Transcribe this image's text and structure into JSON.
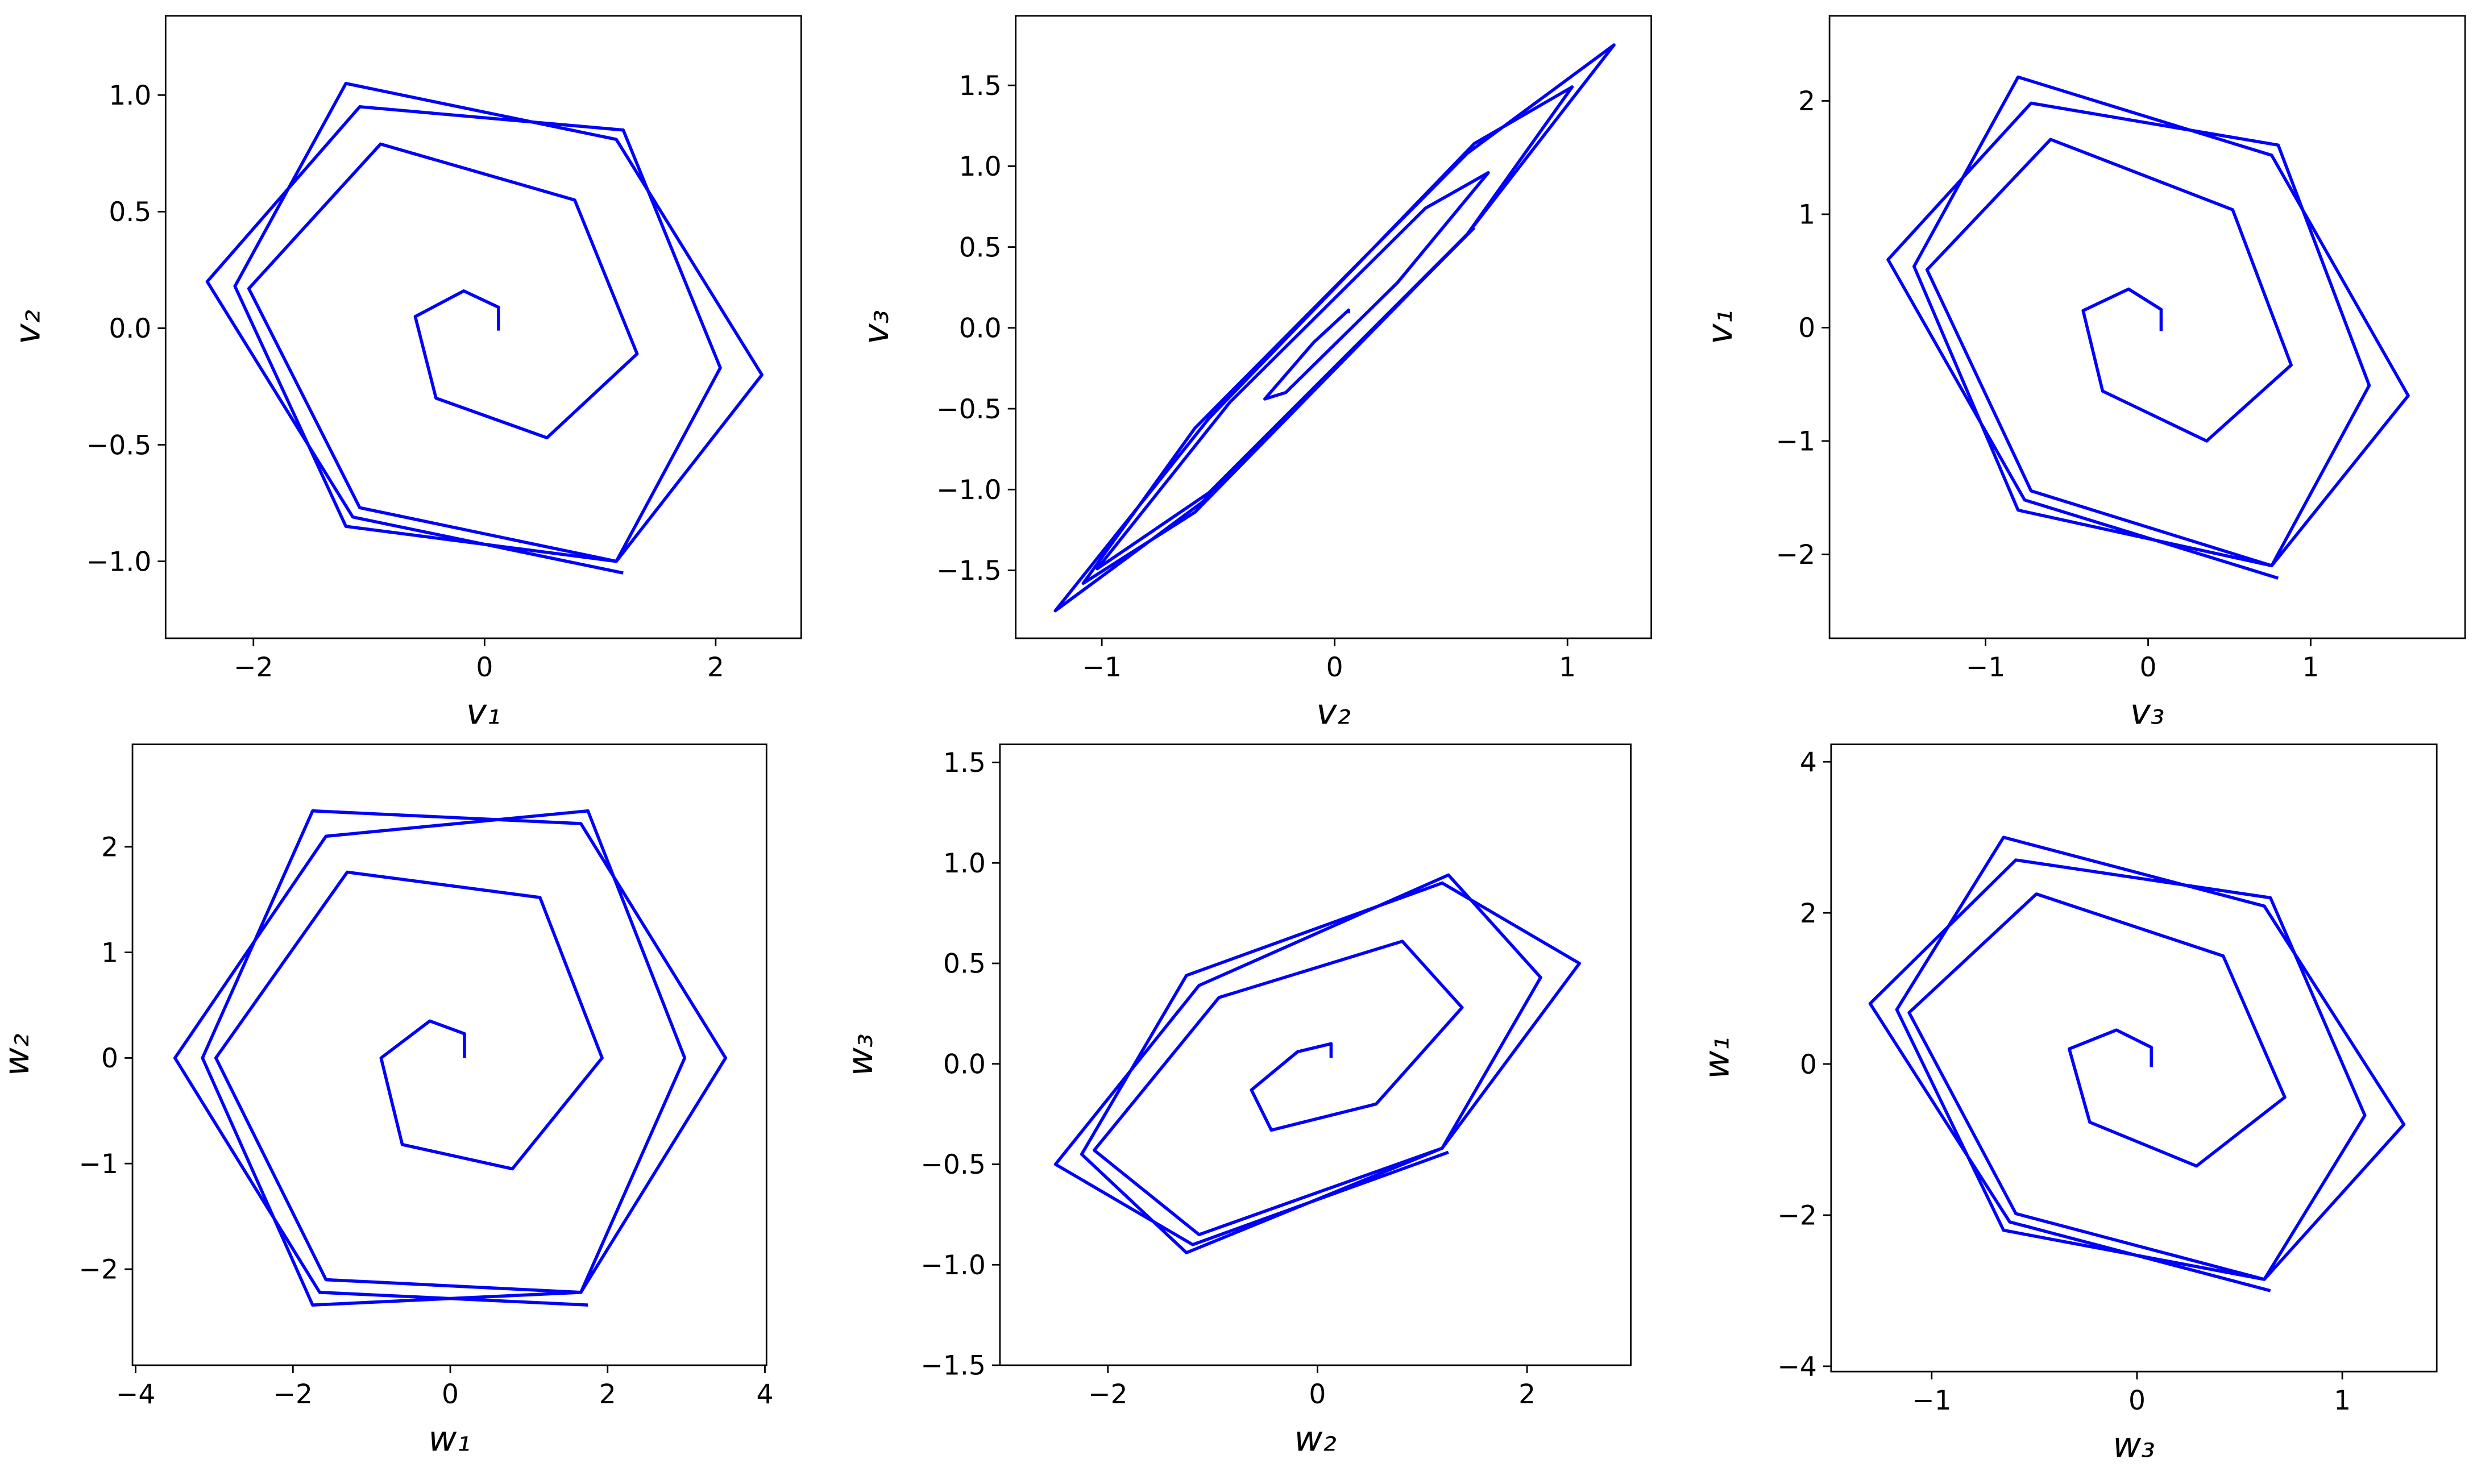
{
  "chart_data": [
    {
      "type": "line",
      "x_label": "v₁",
      "y_label": "v₂",
      "color": "#0000ff",
      "xlim": [
        -2.76,
        2.74
      ],
      "ylim": [
        -1.33,
        1.34
      ],
      "xticks": [
        {
          "value": -2,
          "label": "−2"
        },
        0,
        2
      ],
      "yticks": [
        {
          "value": -1,
          "label": "−1.0"
        },
        {
          "value": -0.5,
          "label": "−0.5"
        },
        {
          "value": 0,
          "label": "0.0"
        },
        {
          "value": 0.5,
          "label": "0.5"
        },
        {
          "value": 1,
          "label": "1.0"
        }
      ],
      "x": [
        0.12,
        0.12,
        -0.18,
        -0.6,
        -0.42,
        0.54,
        1.32,
        0.78,
        -0.9,
        -2.04,
        -1.08,
        1.14,
        2.4,
        1.14,
        -1.2,
        -2.16,
        -1.2,
        1.14,
        2.04,
        1.2,
        -1.08,
        -2.4,
        -1.14,
        1.2
      ],
      "values": [
        -0.01,
        0.09,
        0.16,
        0.05,
        -0.3,
        -0.47,
        -0.11,
        0.55,
        0.79,
        0.17,
        -0.77,
        -1.0,
        -0.2,
        0.81,
        1.05,
        0.18,
        -0.85,
        -1.0,
        -0.17,
        0.85,
        0.95,
        0.2,
        -0.81,
        -1.05
      ]
    },
    {
      "type": "line",
      "x_label": "v₂",
      "y_label": "v₃",
      "color": "#0000ff",
      "xlim": [
        -1.37,
        1.36
      ],
      "ylim": [
        -1.92,
        1.93
      ],
      "xticks": [
        {
          "value": -1,
          "label": "−1"
        },
        0,
        1
      ],
      "yticks": [
        {
          "value": -1.5,
          "label": "−1.5"
        },
        {
          "value": -1,
          "label": "−1.0"
        },
        {
          "value": -0.5,
          "label": "−0.5"
        },
        {
          "value": 0,
          "label": "0.0"
        },
        0.5,
        {
          "value": 1,
          "label": "1.0"
        },
        1.5
      ],
      "x": [
        0.06,
        0.06,
        -0.09,
        -0.3,
        -0.21,
        0.27,
        0.66,
        0.39,
        -0.45,
        -1.02,
        -0.54,
        0.57,
        1.2,
        0.57,
        -0.6,
        -1.08,
        -0.6,
        0.57,
        1.02,
        0.6,
        -0.54,
        -1.2,
        -0.57,
        0.6
      ],
      "values": [
        0.09,
        0.11,
        -0.09,
        -0.44,
        -0.4,
        0.28,
        0.96,
        0.74,
        -0.46,
        -1.49,
        -1.02,
        0.58,
        1.75,
        1.08,
        -0.62,
        -1.58,
        -1.14,
        0.58,
        1.49,
        1.14,
        -0.56,
        -1.75,
        -1.08,
        0.62
      ]
    },
    {
      "type": "line",
      "x_label": "v₃",
      "y_label": "v₁",
      "color": "#0000ff",
      "xlim": [
        -1.96,
        1.95
      ],
      "ylim": [
        -2.74,
        2.75
      ],
      "xticks": [
        {
          "value": -1,
          "label": "−1"
        },
        0,
        1
      ],
      "yticks": [
        {
          "value": -2,
          "label": "−2"
        },
        {
          "value": -1,
          "label": "−1"
        },
        0,
        1,
        2
      ],
      "x": [
        0.08,
        0.08,
        -0.12,
        -0.4,
        -0.28,
        0.36,
        0.88,
        0.52,
        -0.6,
        -1.36,
        -0.72,
        0.76,
        1.6,
        0.76,
        -0.8,
        -1.44,
        -0.8,
        0.76,
        1.36,
        0.8,
        -0.72,
        -1.6,
        -0.76,
        0.8
      ],
      "values": [
        -0.03,
        0.16,
        0.34,
        0.15,
        -0.56,
        -1.0,
        -0.33,
        1.04,
        1.66,
        0.51,
        -1.44,
        -2.1,
        -0.6,
        1.52,
        2.21,
        0.54,
        -1.61,
        -2.1,
        -0.51,
        1.61,
        1.98,
        0.6,
        -1.52,
        -2.21
      ]
    },
    {
      "type": "line",
      "x_label": "w₁",
      "y_label": "w₂",
      "color": "#0000ff",
      "xlim": [
        -4.04,
        4.02
      ],
      "ylim": [
        -2.91,
        2.97
      ],
      "xticks": [
        {
          "value": -4,
          "label": "−4"
        },
        {
          "value": -2,
          "label": "−2"
        },
        0,
        2,
        4
      ],
      "yticks": [
        {
          "value": -2,
          "label": "−2"
        },
        {
          "value": -1,
          "label": "−1"
        },
        0,
        1,
        2
      ],
      "x": [
        0.18,
        0.18,
        -0.26,
        -0.88,
        -0.61,
        0.79,
        1.93,
        1.14,
        -1.31,
        -2.98,
        -1.58,
        1.66,
        3.5,
        1.66,
        -1.75,
        -3.15,
        -1.75,
        1.66,
        2.98,
        1.75,
        -1.58,
        -3.5,
        -1.66,
        1.75
      ],
      "values": [
        0,
        0.23,
        0.35,
        0,
        -0.82,
        -1.05,
        0,
        1.52,
        1.76,
        0,
        -2.1,
        -2.22,
        0,
        2.22,
        2.34,
        0,
        -2.34,
        -2.22,
        0,
        2.34,
        2.1,
        0,
        -2.22,
        -2.34
      ]
    },
    {
      "type": "line",
      "x_label": "w₂",
      "y_label": "w₃",
      "color": "#0000ff",
      "xlim": [
        -3.03,
        2.99
      ],
      "ylim": [
        -1.5,
        1.59
      ],
      "xticks": [
        {
          "value": -2,
          "label": "−2"
        },
        0,
        2
      ],
      "yticks": [
        {
          "value": -1.5,
          "label": "−1.5"
        },
        {
          "value": -1,
          "label": "−1.0"
        },
        {
          "value": -0.5,
          "label": "−0.5"
        },
        {
          "value": 0,
          "label": "0.0"
        },
        0.5,
        {
          "value": 1,
          "label": "1.0"
        },
        1.5
      ],
      "x": [
        0.13,
        0.13,
        -0.19,
        -0.63,
        -0.44,
        0.56,
        1.38,
        0.81,
        -0.94,
        -2.13,
        -1.13,
        1.19,
        2.5,
        1.19,
        -1.25,
        -2.25,
        -1.25,
        1.19,
        2.13,
        1.25,
        -1.13,
        -2.5,
        -1.19,
        1.25
      ],
      "values": [
        0.03,
        0.1,
        0.06,
        -0.13,
        -0.33,
        -0.2,
        0.28,
        0.61,
        0.33,
        -0.43,
        -0.85,
        -0.42,
        0.5,
        0.9,
        0.44,
        -0.45,
        -0.94,
        -0.42,
        0.43,
        0.94,
        0.39,
        -0.5,
        -0.9,
        -0.44
      ]
    },
    {
      "type": "line",
      "x_label": "w₃",
      "y_label": "w₁",
      "color": "#0000ff",
      "xlim": [
        -1.49,
        1.46
      ],
      "ylim": [
        -4.07,
        4.23
      ],
      "xticks": [
        {
          "value": -1,
          "label": "−1"
        },
        0,
        1
      ],
      "yticks": [
        {
          "value": -4,
          "label": "−4"
        },
        {
          "value": -2,
          "label": "−2"
        },
        0,
        2,
        4
      ],
      "x": [
        0.07,
        0.07,
        -0.1,
        -0.33,
        -0.23,
        0.29,
        0.72,
        0.42,
        -0.49,
        -1.11,
        -0.59,
        0.62,
        1.3,
        0.62,
        -0.65,
        -1.17,
        -0.65,
        0.62,
        1.11,
        0.65,
        -0.59,
        -1.3,
        -0.62,
        0.65
      ],
      "values": [
        -0.04,
        0.22,
        0.45,
        0.2,
        -0.77,
        -1.35,
        -0.44,
        1.43,
        2.25,
        0.68,
        -1.98,
        -2.85,
        -0.8,
        2.09,
        3.0,
        0.72,
        -2.2,
        -2.85,
        -0.68,
        2.2,
        2.7,
        0.8,
        -2.09,
        -3.0
      ]
    }
  ]
}
